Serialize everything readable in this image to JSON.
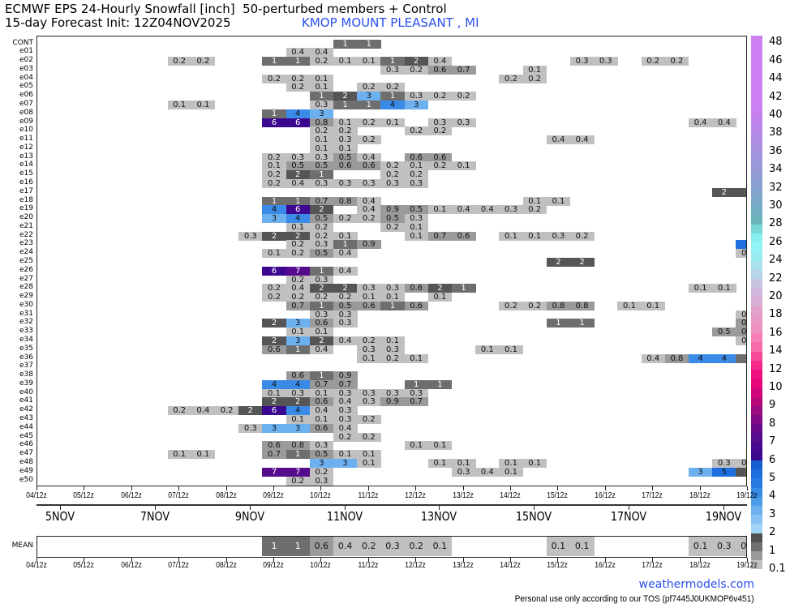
{
  "header": {
    "title": "ECMWF EPS 24-Hourly Snowfall [inch]  50-perturbed members + Control",
    "init": "15-day Forecast Init: 12Z04NOV2025",
    "station": "KMOP MOUNT PLEASANT , MI"
  },
  "chart_data": {
    "type": "heatmap",
    "title": "ECMWF EPS 24-Hourly Snowfall [inch]  50-perturbed members + Control",
    "units": "inch",
    "x_tick_labels": [
      "04/12z",
      "05/12z",
      "06/12z",
      "07/12z",
      "08/12z",
      "09/12z",
      "10/12z",
      "11/12z",
      "12/12z",
      "13/12z",
      "14/12z",
      "15/12z",
      "16/12z",
      "17/12z",
      "18/12z",
      "19/12z"
    ],
    "date_labels": [
      "5NOV",
      "7NOV",
      "9NOV",
      "11NOV",
      "13NOV",
      "15NOV",
      "17NOV",
      "19NOV"
    ],
    "x_range": [
      "04/12z",
      "19/12z"
    ],
    "step": "12h",
    "rows": [
      {
        "label": "CONT",
        "segments": [
          [
            "11/00z",
            [
              1,
              1
            ]
          ]
        ]
      },
      {
        "label": "e01",
        "segments": [
          [
            "10/00z",
            [
              0.4,
              0.4
            ]
          ]
        ]
      },
      {
        "label": "e02",
        "segments": [
          [
            "07/12z",
            [
              0.2,
              0.2
            ]
          ],
          [
            "09/12z",
            [
              1,
              1,
              0.2,
              0.1,
              0.1,
              1,
              2,
              0.4
            ]
          ],
          [
            "16/00z",
            [
              0.3,
              0.3
            ]
          ],
          [
            "17/12z",
            [
              0.2,
              0.2
            ]
          ]
        ]
      },
      {
        "label": "e03",
        "segments": [
          [
            "12/00z",
            [
              0.3,
              0.2,
              0.6,
              0.7
            ]
          ],
          [
            "15/00z",
            [
              0.1
            ]
          ]
        ]
      },
      {
        "label": "e04",
        "segments": [
          [
            "09/12z",
            [
              0.2,
              0.2,
              0.1
            ]
          ],
          [
            "14/12z",
            [
              0.2,
              0.2
            ]
          ]
        ]
      },
      {
        "label": "e05",
        "segments": [
          [
            "10/00z",
            [
              0.2,
              0.1
            ]
          ],
          [
            "11/12z",
            [
              0.2,
              0.2
            ]
          ]
        ]
      },
      {
        "label": "e06",
        "segments": [
          [
            "10/12z",
            [
              1,
              2,
              3,
              1,
              0.3,
              0.2,
              0.2
            ]
          ]
        ]
      },
      {
        "label": "e07",
        "segments": [
          [
            "07/12z",
            [
              0.1,
              0.1
            ]
          ],
          [
            "10/12z",
            [
              0.3,
              1,
              1,
              4,
              3
            ]
          ]
        ]
      },
      {
        "label": "e08",
        "segments": [
          [
            "09/12z",
            [
              1,
              4,
              3
            ]
          ]
        ]
      },
      {
        "label": "e09",
        "segments": [
          [
            "09/12z",
            [
              6,
              6,
              0.8,
              0.1,
              0.2,
              0.1
            ]
          ],
          [
            "13/00z",
            [
              0.3,
              0.3
            ]
          ],
          [
            "18/12z",
            [
              0.4,
              0.4
            ]
          ]
        ]
      },
      {
        "label": "e10",
        "segments": [
          [
            "10/12z",
            [
              0.2,
              0.2
            ]
          ],
          [
            "12/12z",
            [
              0.2,
              0.2
            ]
          ]
        ]
      },
      {
        "label": "e11",
        "segments": [
          [
            "10/12z",
            [
              0.1,
              0.3,
              0.2
            ]
          ],
          [
            "15/12z",
            [
              0.4,
              0.4
            ]
          ]
        ]
      },
      {
        "label": "e12",
        "segments": [
          [
            "10/12z",
            [
              0.1,
              0.1
            ]
          ]
        ]
      },
      {
        "label": "e13",
        "segments": [
          [
            "09/12z",
            [
              0.2,
              0.3,
              0.3,
              0.5,
              0.4
            ]
          ],
          [
            "12/12z",
            [
              0.6,
              0.6
            ]
          ]
        ]
      },
      {
        "label": "e14",
        "segments": [
          [
            "09/12z",
            [
              0.1,
              0.5,
              0.5,
              0.6,
              0.6,
              0.2,
              0.1,
              0.2,
              0.1
            ]
          ]
        ]
      },
      {
        "label": "e15",
        "segments": [
          [
            "09/12z",
            [
              0.2,
              2,
              1
            ]
          ],
          [
            "12/00z",
            [
              0.2,
              0.2
            ]
          ]
        ]
      },
      {
        "label": "e16",
        "segments": [
          [
            "09/12z",
            [
              0.2,
              0.4,
              0.3,
              0.3,
              0.3,
              0.3,
              0.3
            ]
          ]
        ]
      },
      {
        "label": "e17",
        "segments": [
          [
            "19/00z",
            [
              2,
              2
            ]
          ]
        ]
      },
      {
        "label": "e18",
        "segments": [
          [
            "09/12z",
            [
              1,
              1,
              0.7,
              0.8,
              0.4
            ]
          ],
          [
            "15/00z",
            [
              0.1,
              0.1
            ]
          ]
        ]
      },
      {
        "label": "e19",
        "segments": [
          [
            "09/12z",
            [
              4,
              6,
              2,
              null,
              0.4,
              0.9,
              0.5,
              0.1,
              0.4,
              0.4,
              0.3,
              0.2
            ]
          ]
        ]
      },
      {
        "label": "e20",
        "segments": [
          [
            "09/12z",
            [
              3,
              4,
              0.5,
              0.2,
              0.2,
              0.5,
              0.3
            ]
          ]
        ]
      },
      {
        "label": "e21",
        "segments": [
          [
            "10/00z",
            [
              0.1,
              0.2
            ]
          ],
          [
            "12/00z",
            [
              0.2,
              0.1
            ]
          ]
        ]
      },
      {
        "label": "e22",
        "segments": [
          [
            "09/00z",
            [
              0.3,
              2,
              2,
              0.2,
              0.1
            ]
          ],
          [
            "12/12z",
            [
              0.1,
              0.7,
              0.6
            ]
          ],
          [
            "14/12z",
            [
              0.1,
              0.1,
              0.3,
              0.2
            ]
          ]
        ]
      },
      {
        "label": "e23",
        "segments": [
          [
            "10/00z",
            [
              0.2,
              0.3,
              1,
              0.9
            ]
          ],
          [
            "19/12z",
            [
              5
            ]
          ]
        ]
      },
      {
        "label": "e24",
        "segments": [
          [
            "09/12z",
            [
              0.1,
              0.2,
              0.5,
              0.4
            ]
          ],
          [
            "19/12z",
            [
              0.2
            ]
          ]
        ]
      },
      {
        "label": "e25",
        "segments": [
          [
            "15/12z",
            [
              2,
              2
            ]
          ]
        ]
      },
      {
        "label": "e26",
        "segments": [
          [
            "09/12z",
            [
              6,
              7,
              1,
              0.4
            ]
          ]
        ]
      },
      {
        "label": "e27",
        "segments": [
          [
            "10/00z",
            [
              0.2,
              0.3
            ]
          ]
        ]
      },
      {
        "label": "e28",
        "segments": [
          [
            "09/12z",
            [
              0.2,
              0.4,
              2,
              2,
              0.3,
              0.3,
              0.6,
              2,
              1
            ]
          ],
          [
            "18/12z",
            [
              0.1,
              0.1
            ]
          ]
        ]
      },
      {
        "label": "e29",
        "segments": [
          [
            "09/12z",
            [
              0.2,
              0.2,
              0.2,
              0.2,
              0.1,
              0.1,
              null,
              0.1
            ]
          ]
        ]
      },
      {
        "label": "e30",
        "segments": [
          [
            "10/00z",
            [
              0.7,
              1,
              0.5,
              0.6,
              1,
              0.6
            ]
          ],
          [
            "14/12z",
            [
              0.2,
              0.2,
              0.8,
              0.8
            ]
          ],
          [
            "17/00z",
            [
              0.1,
              0.1
            ]
          ]
        ]
      },
      {
        "label": "e31",
        "segments": [
          [
            "10/12z",
            [
              0.3,
              0.3
            ]
          ],
          [
            "19/12z",
            [
              0.2
            ]
          ]
        ]
      },
      {
        "label": "e32",
        "segments": [
          [
            "09/12z",
            [
              2,
              3,
              0.6,
              0.3
            ]
          ],
          [
            "15/12z",
            [
              1,
              1
            ]
          ],
          [
            "19/12z",
            [
              0.8
            ]
          ]
        ]
      },
      {
        "label": "e33",
        "segments": [
          [
            "10/00z",
            [
              0.1,
              0.1
            ]
          ],
          [
            "19/00z",
            [
              0.5,
              0.5
            ]
          ]
        ]
      },
      {
        "label": "e34",
        "segments": [
          [
            "09/12z",
            [
              2,
              3,
              2,
              0.4,
              0.2,
              0.1
            ]
          ],
          [
            "19/12z",
            [
              0.1
            ]
          ]
        ]
      },
      {
        "label": "e35",
        "segments": [
          [
            "09/12z",
            [
              0.6,
              1.0,
              0.4,
              null,
              0.3,
              0.3
            ]
          ],
          [
            "14/00z",
            [
              0.1,
              0.1
            ]
          ]
        ]
      },
      {
        "label": "e36",
        "segments": [
          [
            "11/12z",
            [
              0.1,
              0.2,
              0.1
            ]
          ],
          [
            "17/12z",
            [
              0.4,
              0.8,
              4,
              4,
              1
            ]
          ]
        ]
      },
      {
        "label": "e37",
        "segments": []
      },
      {
        "label": "e38",
        "segments": [
          [
            "10/00z",
            [
              0.6,
              1,
              0.9
            ]
          ]
        ]
      },
      {
        "label": "e39",
        "segments": [
          [
            "09/12z",
            [
              4,
              4,
              0.7,
              0.7
            ]
          ],
          [
            "12/12z",
            [
              1,
              1
            ]
          ]
        ]
      },
      {
        "label": "e40",
        "segments": [
          [
            "09/12z",
            [
              0.1,
              0.3,
              0.1,
              0.3,
              0.3,
              0.3,
              0.3
            ]
          ]
        ]
      },
      {
        "label": "e41",
        "segments": [
          [
            "09/12z",
            [
              2,
              2,
              0.6,
              0.4,
              0.3,
              0.9,
              0.7
            ]
          ]
        ]
      },
      {
        "label": "e42",
        "segments": [
          [
            "07/12z",
            [
              0.2,
              0.4,
              0.2,
              2,
              6,
              4,
              0.4,
              0.3
            ]
          ]
        ]
      },
      {
        "label": "e43",
        "segments": [
          [
            "10/00z",
            [
              0.1,
              0.1,
              0.3,
              0.2
            ]
          ]
        ]
      },
      {
        "label": "e44",
        "segments": [
          [
            "09/00z",
            [
              0.3,
              3,
              3,
              0.6,
              0.4
            ]
          ]
        ]
      },
      {
        "label": "e45",
        "segments": [
          [
            "11/00z",
            [
              0.2,
              0.2
            ]
          ]
        ]
      },
      {
        "label": "e46",
        "segments": [
          [
            "09/12z",
            [
              0.6,
              0.8,
              0.3
            ]
          ],
          [
            "12/12z",
            [
              0.1,
              0.1
            ]
          ]
        ]
      },
      {
        "label": "e47",
        "segments": [
          [
            "07/12z",
            [
              0.1,
              0.1
            ]
          ],
          [
            "09/12z",
            [
              0.7,
              1,
              0.5,
              0.1,
              0.1
            ]
          ]
        ]
      },
      {
        "label": "e48",
        "segments": [
          [
            "10/12z",
            [
              3,
              3,
              0.1
            ]
          ],
          [
            "13/00z",
            [
              0.1,
              0.1
            ]
          ],
          [
            "14/12z",
            [
              0.1,
              0.1
            ]
          ],
          [
            "19/00z",
            [
              0.3,
              0.3
            ]
          ]
        ]
      },
      {
        "label": "e49",
        "segments": [
          [
            "09/12z",
            [
              7,
              7,
              0.2
            ]
          ],
          [
            "13/12z",
            [
              0.3,
              0.4,
              0.1
            ]
          ],
          [
            "18/12z",
            [
              3,
              5,
              2
            ]
          ]
        ]
      },
      {
        "label": "e50",
        "segments": [
          [
            "10/00z",
            [
              0.2,
              0.3
            ]
          ]
        ]
      }
    ],
    "mean": {
      "label": "MEAN",
      "segments": [
        [
          "09/12z",
          [
            1,
            1,
            0.6,
            0.4,
            0.2,
            0.3,
            0.2,
            0.1
          ]
        ],
        [
          "15/12z",
          [
            0.1,
            0.1
          ]
        ],
        [
          "18/12z",
          [
            0.1,
            0.3,
            0.2
          ]
        ]
      ]
    },
    "colorbar": {
      "labels": [
        "0.1",
        "1",
        "2",
        "3",
        "4",
        "5",
        "6",
        "7",
        "8",
        "9",
        "10",
        "12",
        "14",
        "16",
        "18",
        "20",
        "22",
        "24",
        "26",
        "28",
        "30",
        "32",
        "34",
        "36",
        "38",
        "40",
        "42",
        "44",
        "46",
        "48"
      ],
      "colors": [
        [
          "#c0c0c0",
          "#999999"
        ],
        [
          "#707070",
          "#505050"
        ],
        [
          "#a2d4f8",
          "#86c2f4"
        ],
        [
          "#6db0f0",
          "#4d9cec"
        ],
        [
          "#3a8ae8",
          "#2a7ae4"
        ],
        [
          "#1e6ee0",
          "#155fcf"
        ],
        [
          "#3d0890",
          "#48088e"
        ],
        [
          "#560a8c",
          "#680a8a"
        ],
        [
          "#830a86",
          "#9a0a80"
        ],
        [
          "#b8087a",
          "#d0067a"
        ],
        [
          "#e8067a",
          "#f0107e"
        ],
        [
          "#f52a8a",
          "#f84a98"
        ],
        [
          "#f86aa8",
          "#f480b4"
        ],
        [
          "#ee90c0",
          "#e898c4"
        ],
        [
          "#e0a0c8",
          "#d8aed4"
        ],
        [
          "#d0b8dc",
          "#c8c4e0"
        ],
        [
          "#b8d4e8",
          "#a8e0ec"
        ],
        [
          "#98ecf0",
          "#90f4f4"
        ],
        [
          "#88f0ee",
          "#78d8d4"
        ],
        [
          "#6ab4bc",
          "#72aec4"
        ],
        [
          "#7aa8c8",
          "#82a4cc"
        ],
        [
          "#8aa0d0",
          "#929cd4"
        ],
        [
          "#9a98d8",
          "#a294dc"
        ],
        [
          "#aa90e0",
          "#b28ce4"
        ],
        [
          "#ba88e8",
          "#c284ec"
        ],
        [
          "#c880f0",
          "#cc80f2"
        ],
        [
          "#cc80f2",
          "#cc80f2"
        ],
        [
          "#cc80f2",
          "#cc80f2"
        ],
        [
          "#cc80f2",
          "#cc80f2"
        ]
      ]
    }
  },
  "footer": {
    "brand": "weathermodels.com",
    "tos": "Personal use only according to our TOS (pf7445J0UKMOP6v451)"
  }
}
